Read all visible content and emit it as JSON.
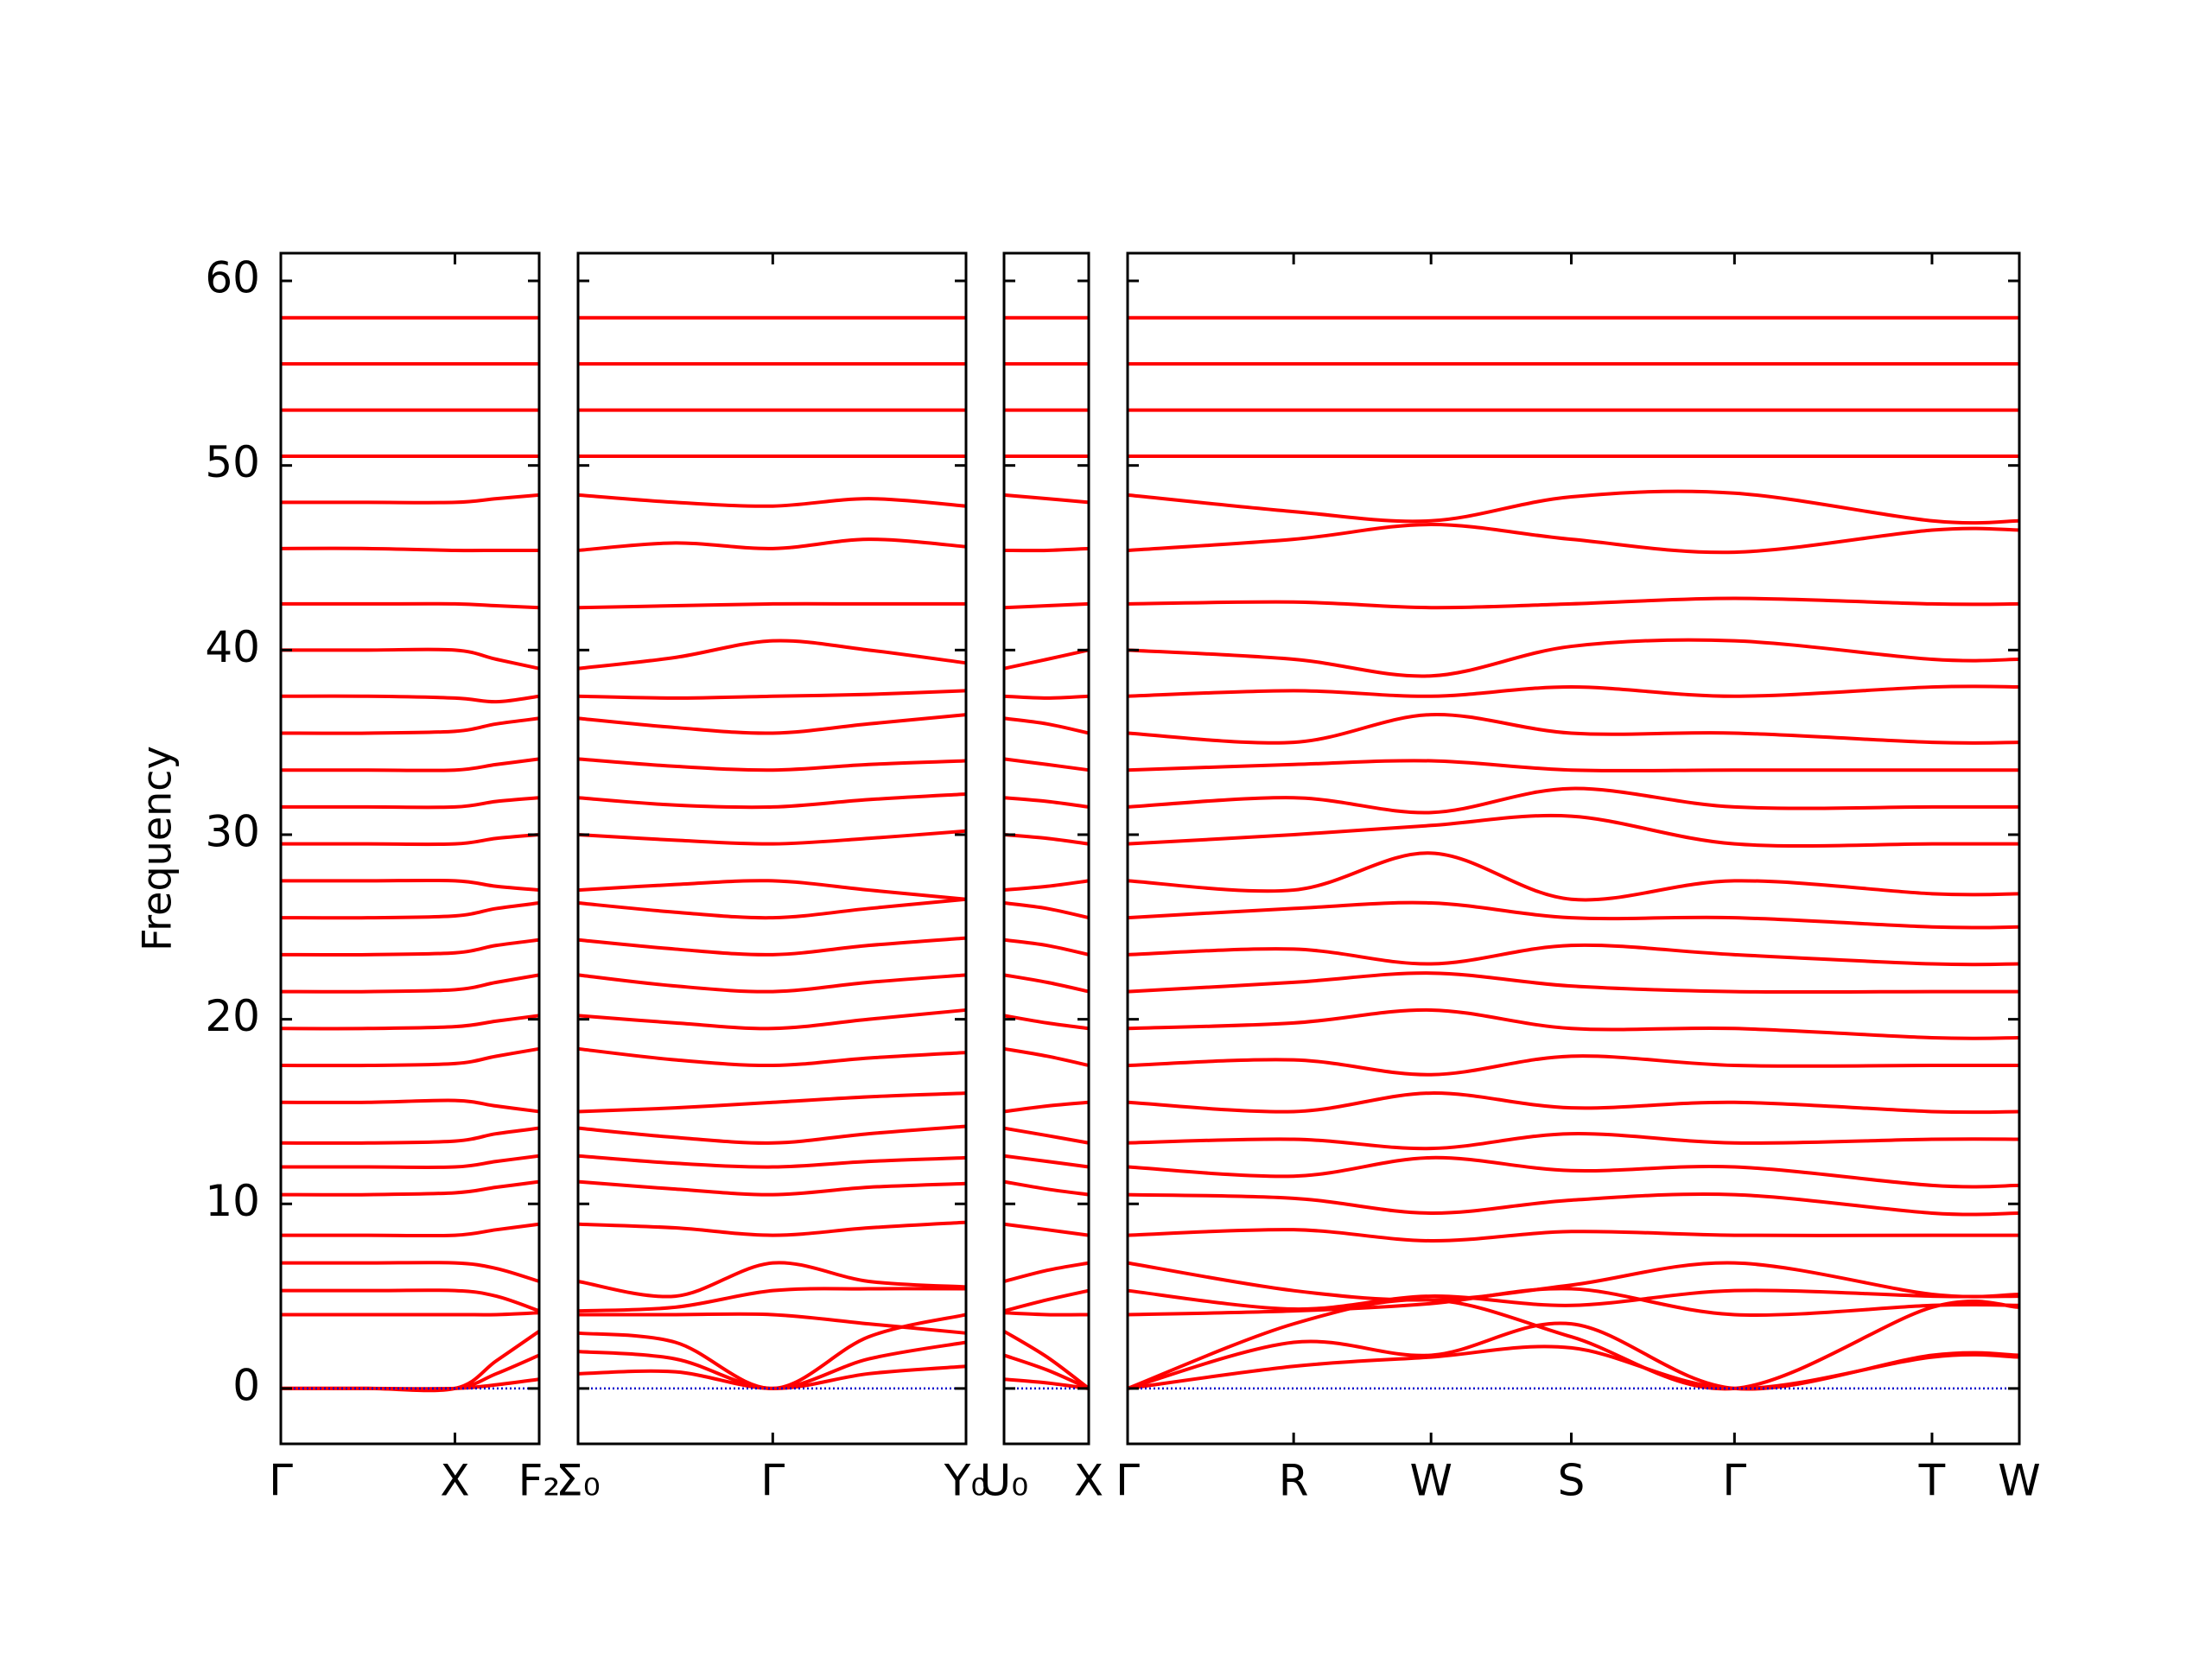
{
  "chart_data": [
    {
      "type": "line",
      "ylabel": "Frequency",
      "color": "#ff0000",
      "hline": 0,
      "hline_color": "#0000cc",
      "x": [
        0,
        0.61,
        1.22,
        1.51,
        1.81
      ],
      "xlim": [
        0,
        1.81
      ],
      "xticks": [
        {
          "value": 0,
          "label": "Γ"
        },
        {
          "value": 1.22,
          "label": "X"
        },
        {
          "value": 1.81,
          "label": "F₂"
        }
      ],
      "ylim": [
        -3,
        61.5
      ],
      "yticks": [
        0,
        10,
        20,
        30,
        40,
        50,
        60
      ],
      "series": [
        {
          "values": [
            0,
            0,
            0,
            0.2,
            0.5
          ]
        },
        {
          "values": [
            0,
            0,
            0,
            0.8,
            1.8
          ]
        },
        {
          "values": [
            0,
            0,
            0,
            1.5,
            3.1
          ]
        },
        {
          "values": [
            4,
            4,
            4,
            4,
            4.1
          ]
        },
        {
          "values": [
            5.3,
            5.3,
            5.3,
            5,
            4.2
          ]
        },
        {
          "values": [
            6.8,
            6.8,
            6.8,
            6.5,
            5.8
          ]
        },
        {
          "values": [
            8.3,
            8.3,
            8.3,
            8.6,
            8.9
          ]
        },
        {
          "values": [
            10.5,
            10.5,
            10.6,
            10.9,
            11.2
          ]
        },
        {
          "values": [
            12,
            12,
            12,
            12.3,
            12.6
          ]
        },
        {
          "values": [
            13.3,
            13.3,
            13.4,
            13.8,
            14.1
          ]
        },
        {
          "values": [
            15.5,
            15.5,
            15.6,
            15.3,
            15
          ]
        },
        {
          "values": [
            17.5,
            17.5,
            17.6,
            18,
            18.4
          ]
        },
        {
          "values": [
            19.5,
            19.5,
            19.6,
            19.9,
            20.2
          ]
        },
        {
          "values": [
            21.5,
            21.5,
            21.6,
            22,
            22.4
          ]
        },
        {
          "values": [
            23.5,
            23.5,
            23.6,
            24,
            24.3
          ]
        },
        {
          "values": [
            25.5,
            25.5,
            25.6,
            26,
            26.3
          ]
        },
        {
          "values": [
            27.5,
            27.5,
            27.5,
            27.2,
            27
          ]
        },
        {
          "values": [
            29.5,
            29.5,
            29.5,
            29.8,
            30
          ]
        },
        {
          "values": [
            31.5,
            31.5,
            31.5,
            31.8,
            32
          ]
        },
        {
          "values": [
            33.5,
            33.5,
            33.5,
            33.8,
            34.1
          ]
        },
        {
          "values": [
            35.5,
            35.5,
            35.6,
            36,
            36.3
          ]
        },
        {
          "values": [
            37.5,
            37.5,
            37.4,
            37.2,
            37.5
          ]
        },
        {
          "values": [
            40,
            40,
            40,
            39.5,
            39
          ]
        },
        {
          "values": [
            42.5,
            42.5,
            42.5,
            42.4,
            42.3
          ]
        },
        {
          "values": [
            45.5,
            45.5,
            45.4,
            45.4,
            45.4
          ]
        },
        {
          "values": [
            48,
            48,
            48,
            48.2,
            48.4
          ]
        },
        {
          "values": [
            50.5,
            50.5,
            50.5,
            50.5,
            50.5
          ]
        },
        {
          "values": [
            53,
            53,
            53,
            53,
            53
          ]
        },
        {
          "values": [
            55.5,
            55.5,
            55.5,
            55.5,
            55.5
          ]
        },
        {
          "values": [
            58,
            58,
            58,
            58,
            58
          ]
        }
      ]
    },
    {
      "type": "line",
      "color": "#ff0000",
      "hline": 0,
      "hline_color": "#0000cc",
      "x": [
        0,
        0.68,
        1.36,
        2.03,
        2.71
      ],
      "xlim": [
        0,
        2.71
      ],
      "xticks": [
        {
          "value": 0,
          "label": "Σ₀"
        },
        {
          "value": 1.36,
          "label": "Γ"
        },
        {
          "value": 2.71,
          "label": "Y₀"
        }
      ],
      "ylim": [
        -3,
        61.5
      ],
      "yticks": [
        0,
        10,
        20,
        30,
        40,
        50,
        60
      ],
      "series": [
        {
          "values": [
            0.8,
            0.9,
            0,
            0.8,
            1.2
          ]
        },
        {
          "values": [
            2,
            1.6,
            0,
            1.6,
            2.5
          ]
        },
        {
          "values": [
            3,
            2.5,
            0,
            2.8,
            4
          ]
        },
        {
          "values": [
            4,
            4,
            4,
            3.5,
            3
          ]
        },
        {
          "values": [
            4.2,
            4.4,
            5.3,
            5.4,
            5.4
          ]
        },
        {
          "values": [
            5.8,
            5,
            6.8,
            5.8,
            5.5
          ]
        },
        {
          "values": [
            8.9,
            8.7,
            8.3,
            8.7,
            9
          ]
        },
        {
          "values": [
            11.2,
            10.8,
            10.5,
            10.9,
            11.1
          ]
        },
        {
          "values": [
            12.6,
            12.2,
            12,
            12.3,
            12.5
          ]
        },
        {
          "values": [
            14.1,
            13.6,
            13.3,
            13.8,
            14.2
          ]
        },
        {
          "values": [
            15,
            15.2,
            15.5,
            15.8,
            16
          ]
        },
        {
          "values": [
            18.4,
            17.8,
            17.5,
            17.9,
            18.2
          ]
        },
        {
          "values": [
            20.2,
            19.8,
            19.5,
            20,
            20.5
          ]
        },
        {
          "values": [
            22.4,
            21.8,
            21.5,
            22,
            22.4
          ]
        },
        {
          "values": [
            24.3,
            23.8,
            23.5,
            24,
            24.4
          ]
        },
        {
          "values": [
            26.3,
            25.8,
            25.5,
            26,
            26.5
          ]
        },
        {
          "values": [
            27,
            27.3,
            27.5,
            27,
            26.5
          ]
        },
        {
          "values": [
            30,
            29.7,
            29.5,
            29.8,
            30.2
          ]
        },
        {
          "values": [
            32,
            31.6,
            31.5,
            31.9,
            32.2
          ]
        },
        {
          "values": [
            34.1,
            33.7,
            33.5,
            33.8,
            34
          ]
        },
        {
          "values": [
            36.3,
            35.8,
            35.5,
            36,
            36.5
          ]
        },
        {
          "values": [
            37.5,
            37.4,
            37.5,
            37.6,
            37.8
          ]
        },
        {
          "values": [
            39,
            39.6,
            40.5,
            40,
            39.3
          ]
        },
        {
          "values": [
            42.3,
            42.4,
            42.5,
            42.5,
            42.5
          ]
        },
        {
          "values": [
            45.4,
            45.8,
            45.5,
            46,
            45.6
          ]
        },
        {
          "values": [
            48.4,
            48,
            47.8,
            48.2,
            47.8
          ]
        },
        {
          "values": [
            50.5,
            50.5,
            50.5,
            50.5,
            50.5
          ]
        },
        {
          "values": [
            53,
            53,
            53,
            53,
            53
          ]
        },
        {
          "values": [
            55.5,
            55.5,
            55.5,
            55.5,
            55.5
          ]
        },
        {
          "values": [
            58,
            58,
            58,
            58,
            58
          ]
        }
      ]
    },
    {
      "type": "line",
      "color": "#ff0000",
      "hline": 0,
      "hline_color": "#0000cc",
      "x": [
        0,
        0.3,
        0.59
      ],
      "xlim": [
        0,
        0.59
      ],
      "xticks": [
        {
          "value": 0,
          "label": "U₀"
        },
        {
          "value": 0.59,
          "label": "X"
        }
      ],
      "ylim": [
        -3,
        61.5
      ],
      "yticks": [
        0,
        10,
        20,
        30,
        40,
        50,
        60
      ],
      "series": [
        {
          "values": [
            0.5,
            0.3,
            0
          ]
        },
        {
          "values": [
            1.8,
            1,
            0
          ]
        },
        {
          "values": [
            3.1,
            1.7,
            0
          ]
        },
        {
          "values": [
            4.1,
            4,
            4
          ]
        },
        {
          "values": [
            4.2,
            4.8,
            5.3
          ]
        },
        {
          "values": [
            5.8,
            6.4,
            6.8
          ]
        },
        {
          "values": [
            8.9,
            8.6,
            8.3
          ]
        },
        {
          "values": [
            11.2,
            10.8,
            10.5
          ]
        },
        {
          "values": [
            12.6,
            12.3,
            12
          ]
        },
        {
          "values": [
            14.1,
            13.7,
            13.3
          ]
        },
        {
          "values": [
            15,
            15.3,
            15.5
          ]
        },
        {
          "values": [
            18.4,
            18,
            17.5
          ]
        },
        {
          "values": [
            20.2,
            19.8,
            19.5
          ]
        },
        {
          "values": [
            22.4,
            22,
            21.5
          ]
        },
        {
          "values": [
            24.3,
            24,
            23.5
          ]
        },
        {
          "values": [
            26.3,
            26,
            25.5
          ]
        },
        {
          "values": [
            27,
            27.2,
            27.5
          ]
        },
        {
          "values": [
            30,
            29.8,
            29.5
          ]
        },
        {
          "values": [
            32,
            31.8,
            31.5
          ]
        },
        {
          "values": [
            34.1,
            33.8,
            33.5
          ]
        },
        {
          "values": [
            36.3,
            36,
            35.5
          ]
        },
        {
          "values": [
            37.5,
            37.4,
            37.5
          ]
        },
        {
          "values": [
            39,
            39.5,
            40
          ]
        },
        {
          "values": [
            42.3,
            42.4,
            42.5
          ]
        },
        {
          "values": [
            45.4,
            45.4,
            45.5
          ]
        },
        {
          "values": [
            48.4,
            48.2,
            48
          ]
        },
        {
          "values": [
            50.5,
            50.5,
            50.5
          ]
        },
        {
          "values": [
            53,
            53,
            53
          ]
        },
        {
          "values": [
            55.5,
            55.5,
            55.5
          ]
        },
        {
          "values": [
            58,
            58,
            58
          ]
        }
      ]
    },
    {
      "type": "line",
      "color": "#ff0000",
      "hline": 0,
      "hline_color": "#0000cc",
      "x": [
        0,
        1.16,
        2.12,
        3.1,
        4.24,
        5.62,
        6.23
      ],
      "xlim": [
        0,
        6.23
      ],
      "xticks": [
        {
          "value": 0,
          "label": "Γ"
        },
        {
          "value": 1.16,
          "label": "R"
        },
        {
          "value": 2.12,
          "label": "W"
        },
        {
          "value": 3.1,
          "label": "S"
        },
        {
          "value": 4.24,
          "label": "Γ"
        },
        {
          "value": 5.62,
          "label": "T"
        },
        {
          "value": 6.23,
          "label": "W"
        }
      ],
      "ylim": [
        -3,
        61.5
      ],
      "yticks": [
        0,
        10,
        20,
        30,
        40,
        50,
        60
      ],
      "series": [
        {
          "values": [
            0,
            1.2,
            1.7,
            2.2,
            0,
            1.7,
            1.7
          ]
        },
        {
          "values": [
            0,
            2.5,
            1.8,
            3.5,
            0,
            1.8,
            1.8
          ]
        },
        {
          "values": [
            0,
            3.5,
            4.8,
            2.8,
            0,
            4.4,
            4.4
          ]
        },
        {
          "values": [
            4,
            4.2,
            4.6,
            5.4,
            4,
            4.5,
            4.5
          ]
        },
        {
          "values": [
            5.3,
            4.3,
            5,
            4.5,
            5.3,
            5,
            5
          ]
        },
        {
          "values": [
            6.8,
            5.3,
            4.8,
            5.6,
            6.8,
            5.1,
            5.1
          ]
        },
        {
          "values": [
            8.3,
            8.6,
            8,
            8.5,
            8.3,
            8.3,
            8.3
          ]
        },
        {
          "values": [
            10.5,
            10.3,
            9.5,
            10.2,
            10.5,
            9.5,
            9.5
          ]
        },
        {
          "values": [
            12,
            11.5,
            12.5,
            11.8,
            12,
            11,
            11
          ]
        },
        {
          "values": [
            13.3,
            13.5,
            13,
            13.8,
            13.3,
            13.5,
            13.5
          ]
        },
        {
          "values": [
            15.5,
            15,
            16,
            15.2,
            15.5,
            15,
            15
          ]
        },
        {
          "values": [
            17.5,
            17.8,
            17,
            18,
            17.5,
            17.5,
            17.5
          ]
        },
        {
          "values": [
            19.5,
            19.8,
            20.5,
            19.5,
            19.5,
            19,
            19
          ]
        },
        {
          "values": [
            21.5,
            22,
            22.5,
            21.8,
            21.5,
            21.5,
            21.5
          ]
        },
        {
          "values": [
            23.5,
            23.8,
            23,
            24,
            23.5,
            23,
            23
          ]
        },
        {
          "values": [
            25.5,
            26,
            26.3,
            25.5,
            25.5,
            25,
            25
          ]
        },
        {
          "values": [
            27.5,
            27,
            29,
            26.5,
            27.5,
            26.8,
            26.8
          ]
        },
        {
          "values": [
            29.5,
            30,
            30.5,
            31,
            29.5,
            29.5,
            29.5
          ]
        },
        {
          "values": [
            31.5,
            32,
            31.2,
            32.5,
            31.5,
            31.5,
            31.5
          ]
        },
        {
          "values": [
            33.5,
            33.8,
            34,
            33.5,
            33.5,
            33.5,
            33.5
          ]
        },
        {
          "values": [
            35.5,
            35,
            36.5,
            35.5,
            35.5,
            35,
            35
          ]
        },
        {
          "values": [
            37.5,
            37.8,
            37.5,
            38,
            37.5,
            38,
            38
          ]
        },
        {
          "values": [
            40,
            39.5,
            38.6,
            40.2,
            40.5,
            39.5,
            39.5
          ]
        },
        {
          "values": [
            42.5,
            42.6,
            42.3,
            42.5,
            42.8,
            42.5,
            42.5
          ]
        },
        {
          "values": [
            45.4,
            46,
            46.8,
            46,
            45.3,
            46.5,
            46.5
          ]
        },
        {
          "values": [
            48.4,
            47.5,
            47,
            48.3,
            48.5,
            47,
            47
          ]
        },
        {
          "values": [
            50.5,
            50.5,
            50.5,
            50.5,
            50.5,
            50.5,
            50.5
          ]
        },
        {
          "values": [
            53,
            53,
            53,
            53,
            53,
            53,
            53
          ]
        },
        {
          "values": [
            55.5,
            55.5,
            55.5,
            55.5,
            55.5,
            55.5,
            55.5
          ]
        },
        {
          "values": [
            58,
            58,
            58,
            58,
            58,
            58,
            58
          ]
        }
      ]
    }
  ]
}
